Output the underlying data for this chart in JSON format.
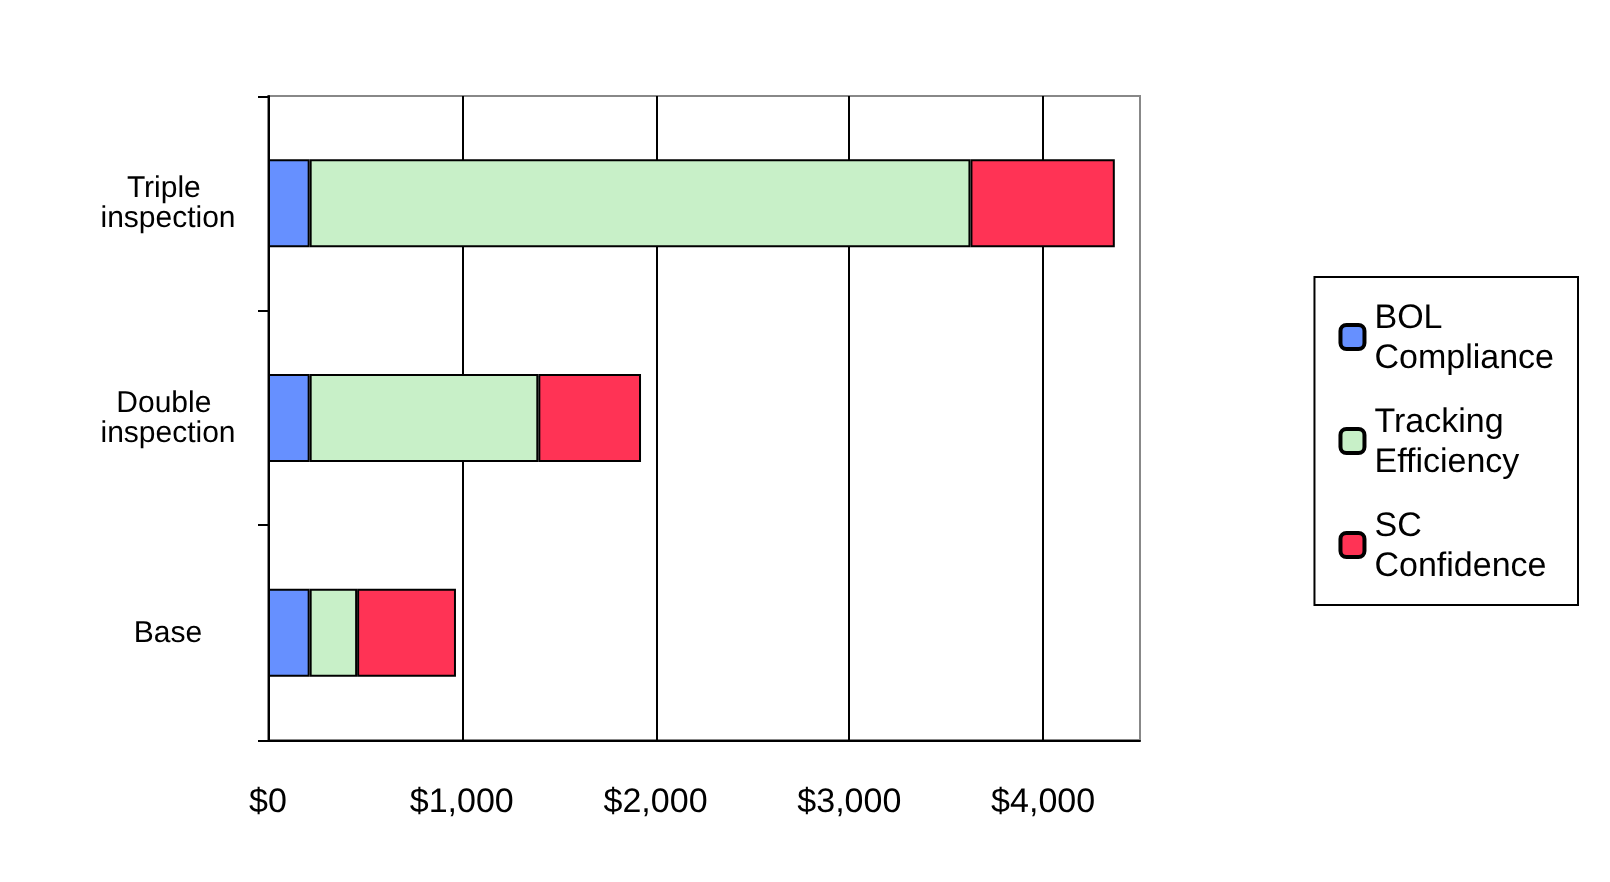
{
  "chart_data": {
    "type": "bar",
    "orientation": "horizontal",
    "stacked": true,
    "categories": [
      "Triple inspection",
      "Double inspection",
      "Base"
    ],
    "series": [
      {
        "name": "BOL Compliance",
        "color": "#6690ff",
        "values": [
          215,
          215,
          215
        ]
      },
      {
        "name": "Tracking Efficiency",
        "color": "#c8f0c8",
        "values": [
          3410,
          1180,
          245
        ]
      },
      {
        "name": "SC Confidence",
        "color": "#ff3355",
        "values": [
          745,
          530,
          510
        ]
      }
    ],
    "xlim": [
      0,
      4500
    ],
    "xticks": [
      {
        "value": 0,
        "label": "$0"
      },
      {
        "value": 1000,
        "label": "$1,000"
      },
      {
        "value": 2000,
        "label": "$2,000"
      },
      {
        "value": 3000,
        "label": "$3,000"
      },
      {
        "value": 4000,
        "label": "$4,000"
      }
    ],
    "grid": "x",
    "legend": "right"
  }
}
